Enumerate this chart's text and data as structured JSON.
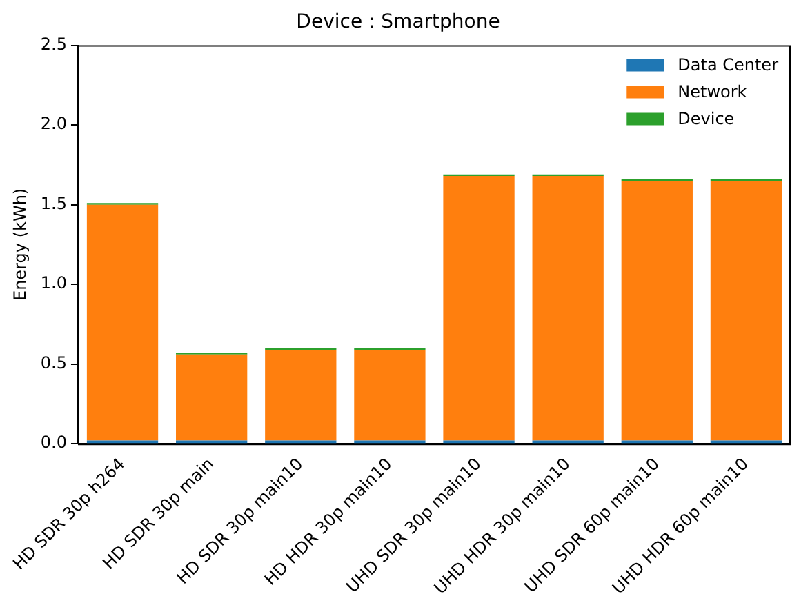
{
  "chart_data": {
    "type": "bar",
    "title": "Device : Smartphone",
    "ylabel": "Energy (kWh)",
    "stacked": true,
    "categories": [
      "HD SDR 30p h264",
      "HD SDR 30p main",
      "HD SDR 30p main10",
      "HD HDR 30p main10",
      "UHD SDR 30p main10",
      "UHD HDR 30p main10",
      "UHD SDR 60p main10",
      "UHD HDR 60p main10"
    ],
    "series": [
      {
        "name": "Data Center",
        "color": "#1f77b4",
        "values": [
          0.02,
          0.02,
          0.02,
          0.02,
          0.02,
          0.02,
          0.02,
          0.02
        ]
      },
      {
        "name": "Network",
        "color": "#ff7f0e",
        "values": [
          1.48,
          0.54,
          0.57,
          0.57,
          1.66,
          1.66,
          1.63,
          1.63
        ]
      },
      {
        "name": "Device",
        "color": "#2ca02c",
        "values": [
          0.01,
          0.01,
          0.01,
          0.01,
          0.01,
          0.01,
          0.01,
          0.01
        ]
      }
    ],
    "ylim": [
      0,
      2.5
    ],
    "yticks": [
      {
        "value": 0,
        "label": "0.0"
      },
      0.5,
      {
        "value": 1,
        "label": "1.0"
      },
      1.5,
      {
        "value": 2,
        "label": "2.0"
      },
      2.5
    ],
    "grid": false,
    "legend": "top right"
  }
}
